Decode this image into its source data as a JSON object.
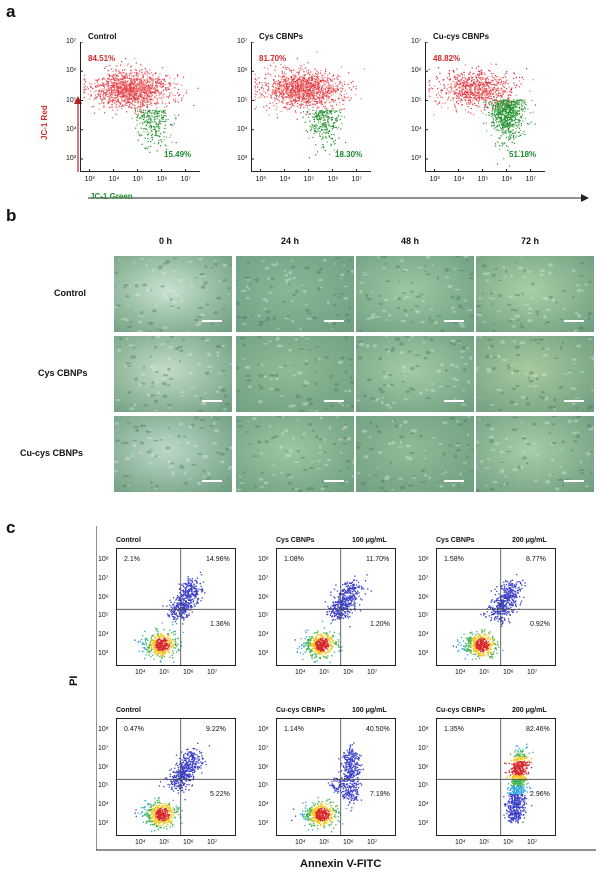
{
  "panel_a": {
    "letter": "a",
    "y_axis_label": "JC-1 Red",
    "x_axis_label": "JC-1 Green",
    "y_ticks": [
      "10⁷",
      "10⁶",
      "10⁵",
      "10⁴",
      "10³"
    ],
    "x_ticks": [
      "10³",
      "10⁴",
      "10⁵",
      "10⁶",
      "10⁷"
    ],
    "plots": [
      {
        "title": "Control",
        "red_pct": "84.51%",
        "green_pct": "15.49%"
      },
      {
        "title": "Cys CBNPs",
        "red_pct": "81.70%",
        "green_pct": "18.30%"
      },
      {
        "title": "Cu-cys CBNPs",
        "red_pct": "48.82%",
        "green_pct": "51.18%"
      }
    ]
  },
  "panel_b": {
    "letter": "b",
    "columns": [
      "0 h",
      "24 h",
      "48 h",
      "72 h"
    ],
    "rows": [
      "Control",
      "Cys CBNPs",
      "Cu-cys CBNPs"
    ]
  },
  "panel_c": {
    "letter": "c",
    "y_axis_label": "PI",
    "x_axis_label": "Annexin V-FITC",
    "y_ticks": [
      "10⁸",
      "10⁷",
      "10⁶",
      "10⁵",
      "10⁴",
      "10³"
    ],
    "x_ticks": [
      "10⁴",
      "10⁵",
      "10⁶",
      "10⁷"
    ],
    "plots": [
      {
        "title": "Control",
        "dose": "",
        "ul": "2.1%",
        "ur": "14.96%",
        "lr": "1.36%"
      },
      {
        "title": "Cys CBNPs",
        "dose": "100 μg/mL",
        "ul": "1.08%",
        "ur": "11.70%",
        "lr": "1.20%"
      },
      {
        "title": "Cys CBNPs",
        "dose": "200 μg/mL",
        "ul": "1.58%",
        "ur": "8.77%",
        "lr": "0.92%"
      },
      {
        "title": "Control",
        "dose": "",
        "ul": "0.47%",
        "ur": "9.22%",
        "lr": "5.22%"
      },
      {
        "title": "Cu-cys CBNPs",
        "dose": "100 μg/mL",
        "ul": "1.14%",
        "ur": "40.50%",
        "lr": "7.19%"
      },
      {
        "title": "Cu-cys CBNPs",
        "dose": "200 μg/mL",
        "ul": "1.35%",
        "ur": "82.46%",
        "lr": "2.96%"
      }
    ]
  },
  "colors": {
    "red": "#d62728",
    "green": "#1f8a2e",
    "micrograph_light": "#b9dcc4",
    "micrograph_dark": "#5f9b7a"
  }
}
